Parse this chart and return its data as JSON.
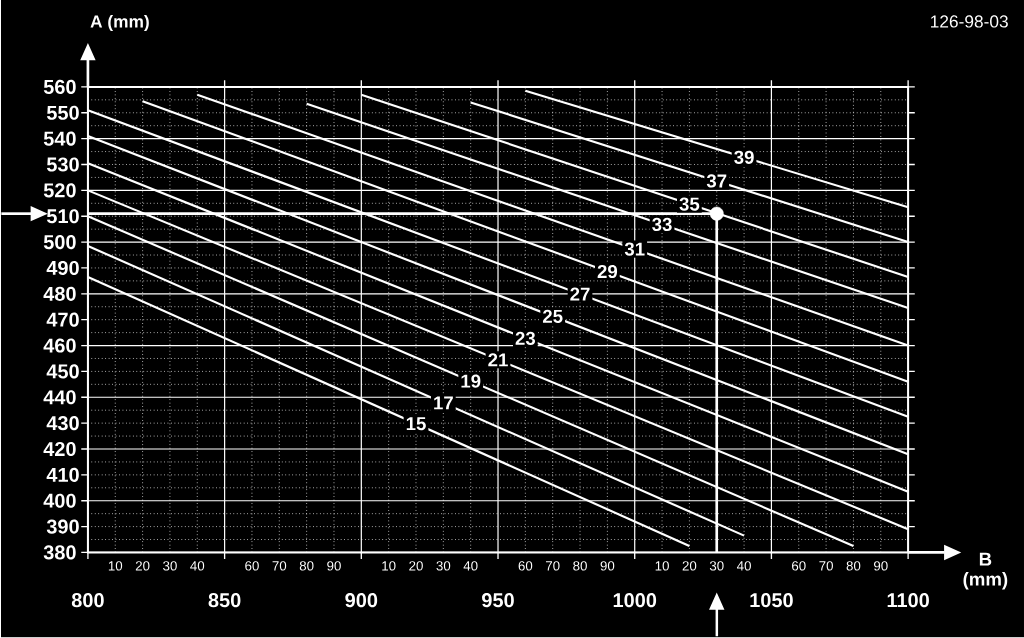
{
  "chart_data": {
    "type": "line",
    "xlabel": "B (mm)",
    "ylabel": "A (mm)",
    "grid": true,
    "annotations": [
      "126-98-03",
      "10",
      "20",
      "30",
      "40",
      "60",
      "70",
      "80",
      "90",
      "10",
      "20",
      "30",
      "40",
      "60",
      "70",
      "80",
      "90",
      "10",
      "20",
      "30",
      "40",
      "60",
      "70",
      "80",
      "90"
    ],
    "xlim": [
      800,
      1100
    ],
    "ylim": [
      380,
      560
    ],
    "xticks": [
      800,
      850,
      900,
      950,
      1000,
      1050,
      1100
    ],
    "yticks": [
      380,
      390,
      400,
      410,
      420,
      430,
      440,
      450,
      460,
      470,
      480,
      490,
      500,
      510,
      520,
      530,
      540,
      550,
      560
    ],
    "ref_lines": [
      {
        "axis": "y",
        "value": 511
      },
      {
        "axis": "x",
        "value": 1030
      }
    ],
    "series": [
      {
        "name": "15",
        "color": "#ffffff",
        "x": [
          800,
          1020
        ],
        "values": [
          486.5,
          382.5
        ]
      },
      {
        "name": "17",
        "color": "#ffffff",
        "x": [
          800,
          1040
        ],
        "values": [
          498.5,
          386.5
        ]
      },
      {
        "name": "19",
        "color": "#ffffff",
        "x": [
          800,
          1080
        ],
        "values": [
          510,
          382.5
        ]
      },
      {
        "name": "21",
        "color": "#ffffff",
        "x": [
          800,
          1100
        ],
        "values": [
          520,
          389
        ]
      },
      {
        "name": "23",
        "color": "#ffffff",
        "x": [
          800,
          1100
        ],
        "values": [
          530.5,
          403.5
        ]
      },
      {
        "name": "25",
        "color": "#ffffff",
        "x": [
          800,
          1100
        ],
        "values": [
          541,
          418
        ]
      },
      {
        "name": "27",
        "color": "#ffffff",
        "x": [
          800,
          1100
        ],
        "values": [
          551,
          432.5
        ]
      },
      {
        "name": "29",
        "color": "#ffffff",
        "x": [
          820,
          1100
        ],
        "values": [
          554.5,
          446
        ]
      },
      {
        "name": "31",
        "color": "#ffffff",
        "x": [
          840,
          1100
        ],
        "values": [
          557,
          460
        ]
      },
      {
        "name": "33",
        "color": "#ffffff",
        "x": [
          880,
          1100
        ],
        "values": [
          553.5,
          474.5
        ]
      },
      {
        "name": "35",
        "color": "#ffffff",
        "x": [
          900,
          1100
        ],
        "values": [
          557,
          486.5
        ]
      },
      {
        "name": "37",
        "color": "#ffffff",
        "x": [
          940,
          1100
        ],
        "values": [
          554,
          500
        ]
      },
      {
        "name": "39",
        "color": "#ffffff",
        "x": [
          960,
          1100
        ],
        "values": [
          558.5,
          513.5
        ]
      },
      {
        "type": "scatter",
        "color": "#ffffff",
        "x": [
          1030
        ],
        "values": [
          511
        ]
      }
    ]
  }
}
